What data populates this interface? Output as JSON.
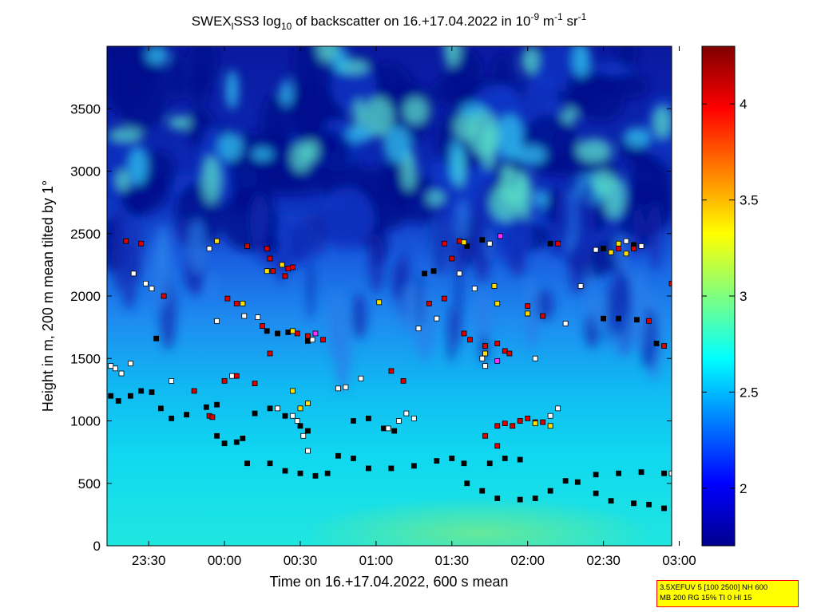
{
  "chart_data": {
    "type": "heatmap",
    "title": {
      "prefix": "SWEX",
      "prefix_sub": "l",
      "middle": "SS3 log",
      "middle_sub": "10",
      "after": " of backscatter on 16.+17.04.2022 in 10",
      "exp1": "-9",
      "unit_m": " m",
      "exp2": "-1",
      "unit_sr": " sr",
      "exp3": "-1"
    },
    "xlabel": "Time on 16.+17.04.2022, 600 s mean",
    "ylabel": "Height in m, 200 m mean tilted by 1°",
    "x_ticks": [
      "23:30",
      "00:00",
      "00:30",
      "01:00",
      "01:30",
      "02:00",
      "02:30",
      "03:00"
    ],
    "x_tick_hours": [
      -0.5,
      0,
      0.5,
      1,
      1.5,
      2,
      2.5,
      3
    ],
    "xlim_hours": [
      -0.775,
      2.95
    ],
    "y_ticks": [
      0,
      500,
      1000,
      1500,
      2000,
      2500,
      3000,
      3500
    ],
    "ylim": [
      0,
      4000
    ],
    "colorbar": {
      "range": [
        1.7,
        4.3
      ],
      "ticks": [
        "2",
        "2.5",
        "3",
        "3.5",
        "4"
      ],
      "tick_values": [
        2,
        2.5,
        3,
        3.5,
        4
      ],
      "colormap": "jet"
    },
    "series": [
      {
        "marker_color": "#000000",
        "points": [
          [
            -0.75,
            1200
          ],
          [
            -0.7,
            1160
          ],
          [
            -0.62,
            1200
          ],
          [
            -0.55,
            1240
          ],
          [
            -0.48,
            1230
          ],
          [
            -0.42,
            1100
          ],
          [
            -0.35,
            1020
          ],
          [
            -0.25,
            1050
          ],
          [
            -0.12,
            1110
          ],
          [
            -0.05,
            1130
          ],
          [
            -0.05,
            880
          ],
          [
            0.0,
            820
          ],
          [
            0.08,
            830
          ],
          [
            0.12,
            860
          ],
          [
            0.15,
            660
          ],
          [
            0.3,
            660
          ],
          [
            0.4,
            600
          ],
          [
            0.5,
            580
          ],
          [
            0.6,
            560
          ],
          [
            0.68,
            580
          ],
          [
            0.2,
            1060
          ],
          [
            0.3,
            1100
          ],
          [
            0.4,
            1040
          ],
          [
            0.5,
            960
          ],
          [
            0.55,
            920
          ],
          [
            0.75,
            720
          ],
          [
            0.85,
            700
          ],
          [
            0.95,
            620
          ],
          [
            1.1,
            620
          ],
          [
            1.25,
            640
          ],
          [
            1.4,
            680
          ],
          [
            1.5,
            700
          ],
          [
            1.58,
            660
          ],
          [
            0.85,
            1000
          ],
          [
            0.95,
            1020
          ],
          [
            1.05,
            940
          ],
          [
            1.12,
            920
          ],
          [
            1.6,
            500
          ],
          [
            1.7,
            440
          ],
          [
            1.8,
            380
          ],
          [
            1.95,
            370
          ],
          [
            2.05,
            380
          ],
          [
            2.15,
            440
          ],
          [
            2.25,
            520
          ],
          [
            2.33,
            510
          ],
          [
            2.45,
            420
          ],
          [
            2.55,
            360
          ],
          [
            2.7,
            340
          ],
          [
            2.8,
            330
          ],
          [
            2.9,
            300
          ],
          [
            1.75,
            660
          ],
          [
            1.85,
            700
          ],
          [
            1.95,
            690
          ],
          [
            2.45,
            570
          ],
          [
            2.6,
            580
          ],
          [
            2.75,
            590
          ],
          [
            2.9,
            580
          ],
          [
            -0.45,
            1660
          ],
          [
            0.28,
            1720
          ],
          [
            0.35,
            1700
          ],
          [
            0.42,
            1710
          ],
          [
            0.55,
            1640
          ],
          [
            1.6,
            2400
          ],
          [
            1.7,
            2450
          ],
          [
            2.15,
            2420
          ],
          [
            2.5,
            2380
          ],
          [
            2.7,
            2410
          ],
          [
            2.5,
            1820
          ],
          [
            2.6,
            1820
          ],
          [
            2.72,
            1810
          ],
          [
            2.85,
            1620
          ],
          [
            1.32,
            2180
          ],
          [
            1.38,
            2200
          ]
        ]
      },
      {
        "marker_color": "#ffffff",
        "points": [
          [
            -0.72,
            1420
          ],
          [
            -0.68,
            1380
          ],
          [
            -0.62,
            1460
          ],
          [
            -0.52,
            2100
          ],
          [
            -0.48,
            2060
          ],
          [
            -0.6,
            2180
          ],
          [
            -0.35,
            1320
          ],
          [
            -0.1,
            2380
          ],
          [
            -0.05,
            1800
          ],
          [
            0.05,
            1360
          ],
          [
            0.13,
            1840
          ],
          [
            0.22,
            1830
          ],
          [
            0.35,
            1100
          ],
          [
            0.45,
            1040
          ],
          [
            0.48,
            1000
          ],
          [
            0.52,
            880
          ],
          [
            0.55,
            760
          ],
          [
            0.58,
            1650
          ],
          [
            0.75,
            1260
          ],
          [
            0.8,
            1270
          ],
          [
            0.9,
            1340
          ],
          [
            1.08,
            940
          ],
          [
            1.15,
            1000
          ],
          [
            1.2,
            1060
          ],
          [
            1.25,
            1020
          ],
          [
            1.28,
            1740
          ],
          [
            1.4,
            1820
          ],
          [
            1.55,
            2180
          ],
          [
            1.65,
            2060
          ],
          [
            1.7,
            1500
          ],
          [
            1.72,
            1440
          ],
          [
            1.75,
            2420
          ],
          [
            2.0,
            1860
          ],
          [
            2.05,
            1500
          ],
          [
            2.15,
            1040
          ],
          [
            2.2,
            1100
          ],
          [
            2.25,
            1780
          ],
          [
            2.35,
            2080
          ],
          [
            2.45,
            2370
          ],
          [
            2.65,
            2440
          ],
          [
            2.75,
            2400
          ],
          [
            2.95,
            580
          ],
          [
            -0.75,
            1440
          ]
        ]
      },
      {
        "marker_color": "#dd0000",
        "points": [
          [
            -0.65,
            2440
          ],
          [
            -0.55,
            2420
          ],
          [
            -0.4,
            2000
          ],
          [
            -0.2,
            1240
          ],
          [
            -0.1,
            1040
          ],
          [
            0.02,
            1980
          ],
          [
            0.08,
            1940
          ],
          [
            0.15,
            2400
          ],
          [
            0.25,
            1760
          ],
          [
            0.28,
            2380
          ],
          [
            0.3,
            2300
          ],
          [
            0.32,
            2200
          ],
          [
            0.4,
            2160
          ],
          [
            0.48,
            1700
          ],
          [
            0.55,
            1680
          ],
          [
            0.65,
            1650
          ],
          [
            0.3,
            1540
          ],
          [
            0.2,
            1300
          ],
          [
            0.08,
            1360
          ],
          [
            1.1,
            1400
          ],
          [
            1.18,
            1320
          ],
          [
            1.35,
            1940
          ],
          [
            1.45,
            1980
          ],
          [
            1.5,
            2300
          ],
          [
            1.55,
            2440
          ],
          [
            1.45,
            2420
          ],
          [
            1.58,
            1700
          ],
          [
            1.62,
            1650
          ],
          [
            1.72,
            1600
          ],
          [
            1.8,
            1620
          ],
          [
            1.85,
            1560
          ],
          [
            1.88,
            1540
          ],
          [
            1.8,
            960
          ],
          [
            1.85,
            980
          ],
          [
            1.9,
            960
          ],
          [
            1.95,
            1000
          ],
          [
            2.0,
            1020
          ],
          [
            2.05,
            990
          ],
          [
            2.1,
            990
          ],
          [
            1.72,
            880
          ],
          [
            1.8,
            800
          ],
          [
            2.0,
            1920
          ],
          [
            2.1,
            1840
          ],
          [
            2.2,
            2420
          ],
          [
            2.6,
            2380
          ],
          [
            2.7,
            2380
          ],
          [
            2.8,
            1800
          ],
          [
            2.9,
            1600
          ],
          [
            2.95,
            2100
          ],
          [
            0.42,
            2220
          ],
          [
            0.45,
            2230
          ],
          [
            0.0,
            1320
          ],
          [
            -0.08,
            1030
          ]
        ]
      },
      {
        "marker_color": "#ffe000",
        "points": [
          [
            -0.05,
            2440
          ],
          [
            0.12,
            1940
          ],
          [
            0.28,
            2200
          ],
          [
            0.38,
            2250
          ],
          [
            0.45,
            1720
          ],
          [
            0.55,
            1140
          ],
          [
            0.5,
            1100
          ],
          [
            0.45,
            1240
          ],
          [
            1.02,
            1950
          ],
          [
            1.58,
            2430
          ],
          [
            1.72,
            1540
          ],
          [
            1.78,
            2080
          ],
          [
            1.8,
            1940
          ],
          [
            2.05,
            980
          ],
          [
            2.15,
            960
          ],
          [
            2.55,
            2350
          ],
          [
            2.6,
            2420
          ],
          [
            2.65,
            2340
          ],
          [
            2.0,
            1860
          ]
        ]
      },
      {
        "marker_color": "#ff33ff",
        "points": [
          [
            0.6,
            1700
          ],
          [
            1.82,
            2480
          ],
          [
            1.8,
            1480
          ]
        ]
      }
    ]
  },
  "info_box": {
    "line1": "3.5XEFUV 5 [100 2500] NH 600",
    "line2": "MB 200 RG 15% TI 0 HI 15"
  }
}
